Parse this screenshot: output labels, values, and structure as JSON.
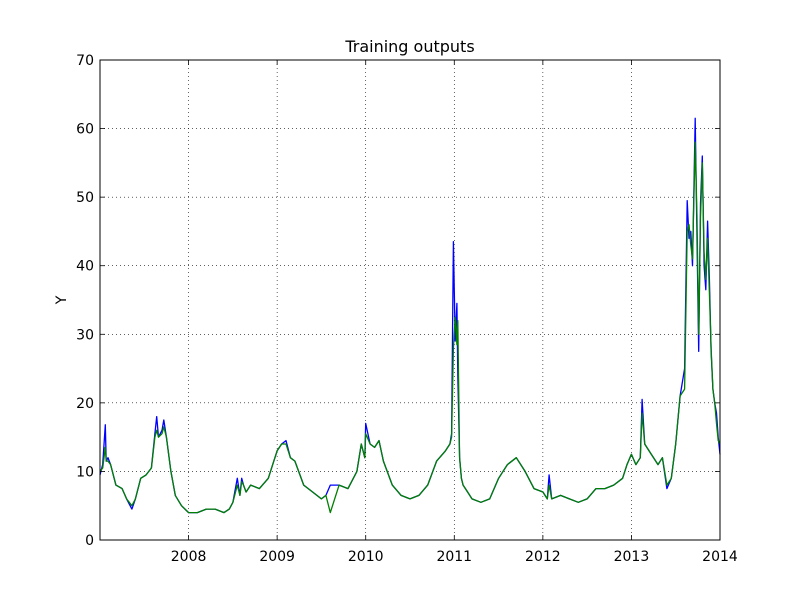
{
  "chart_data": {
    "type": "line",
    "title": "Training outputs",
    "xlabel": "",
    "ylabel": "Y",
    "xlim": [
      2007.0,
      2014.0
    ],
    "ylim": [
      0,
      70
    ],
    "x_ticks": [
      2008,
      2009,
      2010,
      2011,
      2012,
      2013,
      2014
    ],
    "x_tick_labels": [
      "2008",
      "2009",
      "2010",
      "2011",
      "2012",
      "2013",
      "2014"
    ],
    "y_ticks": [
      0,
      10,
      20,
      30,
      40,
      50,
      60,
      70
    ],
    "y_tick_labels": [
      "0",
      "10",
      "20",
      "30",
      "40",
      "50",
      "60",
      "70"
    ],
    "grid": true,
    "series": [
      {
        "color": "#0000ff",
        "x": [
          2007.0,
          2007.03,
          2007.06,
          2007.07,
          2007.09,
          2007.12,
          2007.18,
          2007.25,
          2007.3,
          2007.36,
          2007.4,
          2007.46,
          2007.52,
          2007.58,
          2007.62,
          2007.64,
          2007.66,
          2007.7,
          2007.72,
          2007.75,
          2007.8,
          2007.85,
          2007.92,
          2008.0,
          2008.1,
          2008.2,
          2008.3,
          2008.4,
          2008.46,
          2008.5,
          2008.55,
          2008.58,
          2008.6,
          2008.62,
          2008.65,
          2008.7,
          2008.8,
          2008.9,
          2008.95,
          2009.0,
          2009.05,
          2009.1,
          2009.15,
          2009.2,
          2009.3,
          2009.4,
          2009.5,
          2009.55,
          2009.6,
          2009.7,
          2009.8,
          2009.9,
          2009.95,
          2009.99,
          2010.0,
          2010.05,
          2010.1,
          2010.15,
          2010.2,
          2010.3,
          2010.4,
          2010.5,
          2010.6,
          2010.7,
          2010.8,
          2010.9,
          2010.95,
          2010.97,
          2010.99,
          2011.01,
          2011.03,
          2011.04,
          2011.06,
          2011.08,
          2011.1,
          2011.15,
          2011.2,
          2011.3,
          2011.4,
          2011.5,
          2011.6,
          2011.7,
          2011.8,
          2011.9,
          2012.0,
          2012.05,
          2012.07,
          2012.1,
          2012.2,
          2012.3,
          2012.4,
          2012.5,
          2012.6,
          2012.7,
          2012.8,
          2012.9,
          2012.95,
          2013.0,
          2013.05,
          2013.1,
          2013.12,
          2013.15,
          2013.2,
          2013.3,
          2013.35,
          2013.4,
          2013.45,
          2013.5,
          2013.55,
          2013.6,
          2013.63,
          2013.65,
          2013.67,
          2013.69,
          2013.72,
          2013.74,
          2013.76,
          2013.78,
          2013.8,
          2013.82,
          2013.84,
          2013.86,
          2013.88,
          2013.9,
          2013.92,
          2013.94,
          2013.96,
          2013.98,
          2014.0
        ],
        "values": [
          9.5,
          11.0,
          16.8,
          11.5,
          12.0,
          11.0,
          8.0,
          7.5,
          6.0,
          4.5,
          6.0,
          9.0,
          9.5,
          10.5,
          15.5,
          18.0,
          15.0,
          16.0,
          17.5,
          15.0,
          10.0,
          6.5,
          5.0,
          4.0,
          4.0,
          4.5,
          4.5,
          4.0,
          4.5,
          5.5,
          9.0,
          6.5,
          9.0,
          8.0,
          7.0,
          8.0,
          7.5,
          9.0,
          11.0,
          13.0,
          14.0,
          14.5,
          12.0,
          11.5,
          8.0,
          7.0,
          6.0,
          6.5,
          8.0,
          8.0,
          7.5,
          10.0,
          14.0,
          12.0,
          17.0,
          14.0,
          13.5,
          14.5,
          11.5,
          8.0,
          6.5,
          6.0,
          6.5,
          8.0,
          11.5,
          13.0,
          14.0,
          15.5,
          43.5,
          29.0,
          34.5,
          24.0,
          12.0,
          9.0,
          8.0,
          7.0,
          6.0,
          5.5,
          6.0,
          9.0,
          11.0,
          12.0,
          10.0,
          7.5,
          7.0,
          6.0,
          9.5,
          6.0,
          6.5,
          6.0,
          5.5,
          6.0,
          7.5,
          7.5,
          8.0,
          9.0,
          11.0,
          12.5,
          11.0,
          12.0,
          20.5,
          14.0,
          13.0,
          11.0,
          12.0,
          7.5,
          9.0,
          14.0,
          21.0,
          25.0,
          49.5,
          44.0,
          45.0,
          40.0,
          61.5,
          44.0,
          27.5,
          49.0,
          56.0,
          40.0,
          36.5,
          46.5,
          38.0,
          27.5,
          22.0,
          20.0,
          18.5,
          15.0,
          12.5
        ],
        "name": ""
      },
      {
        "color": "#007f00",
        "x": [
          2007.0,
          2007.03,
          2007.06,
          2007.07,
          2007.09,
          2007.12,
          2007.18,
          2007.25,
          2007.3,
          2007.36,
          2007.4,
          2007.46,
          2007.52,
          2007.58,
          2007.62,
          2007.64,
          2007.66,
          2007.7,
          2007.72,
          2007.75,
          2007.8,
          2007.85,
          2007.92,
          2008.0,
          2008.1,
          2008.2,
          2008.3,
          2008.4,
          2008.46,
          2008.5,
          2008.55,
          2008.58,
          2008.6,
          2008.62,
          2008.65,
          2008.7,
          2008.8,
          2008.9,
          2008.95,
          2009.0,
          2009.05,
          2009.1,
          2009.15,
          2009.2,
          2009.3,
          2009.4,
          2009.5,
          2009.55,
          2009.6,
          2009.7,
          2009.8,
          2009.9,
          2009.95,
          2009.99,
          2010.0,
          2010.05,
          2010.1,
          2010.15,
          2010.2,
          2010.3,
          2010.4,
          2010.5,
          2010.6,
          2010.7,
          2010.8,
          2010.9,
          2010.95,
          2010.97,
          2010.99,
          2011.01,
          2011.03,
          2011.04,
          2011.06,
          2011.08,
          2011.1,
          2011.15,
          2011.2,
          2011.3,
          2011.4,
          2011.5,
          2011.6,
          2011.7,
          2011.8,
          2011.9,
          2012.0,
          2012.05,
          2012.07,
          2012.1,
          2012.2,
          2012.3,
          2012.4,
          2012.5,
          2012.6,
          2012.7,
          2012.8,
          2012.9,
          2012.95,
          2013.0,
          2013.05,
          2013.1,
          2013.12,
          2013.15,
          2013.2,
          2013.3,
          2013.35,
          2013.4,
          2013.45,
          2013.5,
          2013.55,
          2013.6,
          2013.63,
          2013.65,
          2013.67,
          2013.69,
          2013.72,
          2013.74,
          2013.76,
          2013.78,
          2013.8,
          2013.82,
          2013.84,
          2013.86,
          2013.88,
          2013.9,
          2013.92,
          2013.94,
          2013.96,
          2013.98,
          2014.0
        ],
        "values": [
          10.0,
          10.5,
          13.5,
          11.5,
          11.5,
          11.0,
          8.0,
          7.5,
          6.0,
          5.0,
          6.0,
          9.0,
          9.5,
          10.5,
          15.0,
          16.0,
          15.0,
          15.5,
          16.5,
          15.0,
          10.0,
          6.5,
          5.0,
          4.0,
          4.0,
          4.5,
          4.5,
          4.0,
          4.5,
          5.5,
          8.0,
          6.5,
          8.5,
          8.0,
          7.0,
          8.0,
          7.5,
          9.0,
          11.0,
          13.0,
          14.0,
          14.0,
          12.0,
          11.5,
          8.0,
          7.0,
          6.0,
          6.5,
          4.0,
          8.0,
          7.5,
          10.0,
          14.0,
          12.0,
          15.5,
          14.0,
          13.5,
          14.5,
          11.5,
          8.0,
          6.5,
          6.0,
          6.5,
          8.0,
          11.5,
          13.0,
          14.0,
          15.0,
          28.0,
          32.5,
          28.5,
          32.0,
          12.0,
          9.0,
          8.0,
          7.0,
          6.0,
          5.5,
          6.0,
          9.0,
          11.0,
          12.0,
          10.0,
          7.5,
          7.0,
          6.0,
          8.0,
          6.0,
          6.5,
          6.0,
          5.5,
          6.0,
          7.5,
          7.5,
          8.0,
          9.0,
          11.0,
          12.5,
          11.0,
          12.0,
          18.5,
          14.0,
          13.0,
          11.0,
          12.0,
          8.0,
          9.0,
          14.0,
          21.0,
          22.0,
          45.0,
          46.0,
          43.0,
          41.0,
          58.0,
          47.0,
          30.0,
          47.0,
          55.0,
          42.0,
          38.0,
          44.0,
          36.0,
          28.0,
          22.0,
          20.0,
          17.0,
          14.5,
          14.0
        ],
        "name": ""
      }
    ]
  }
}
